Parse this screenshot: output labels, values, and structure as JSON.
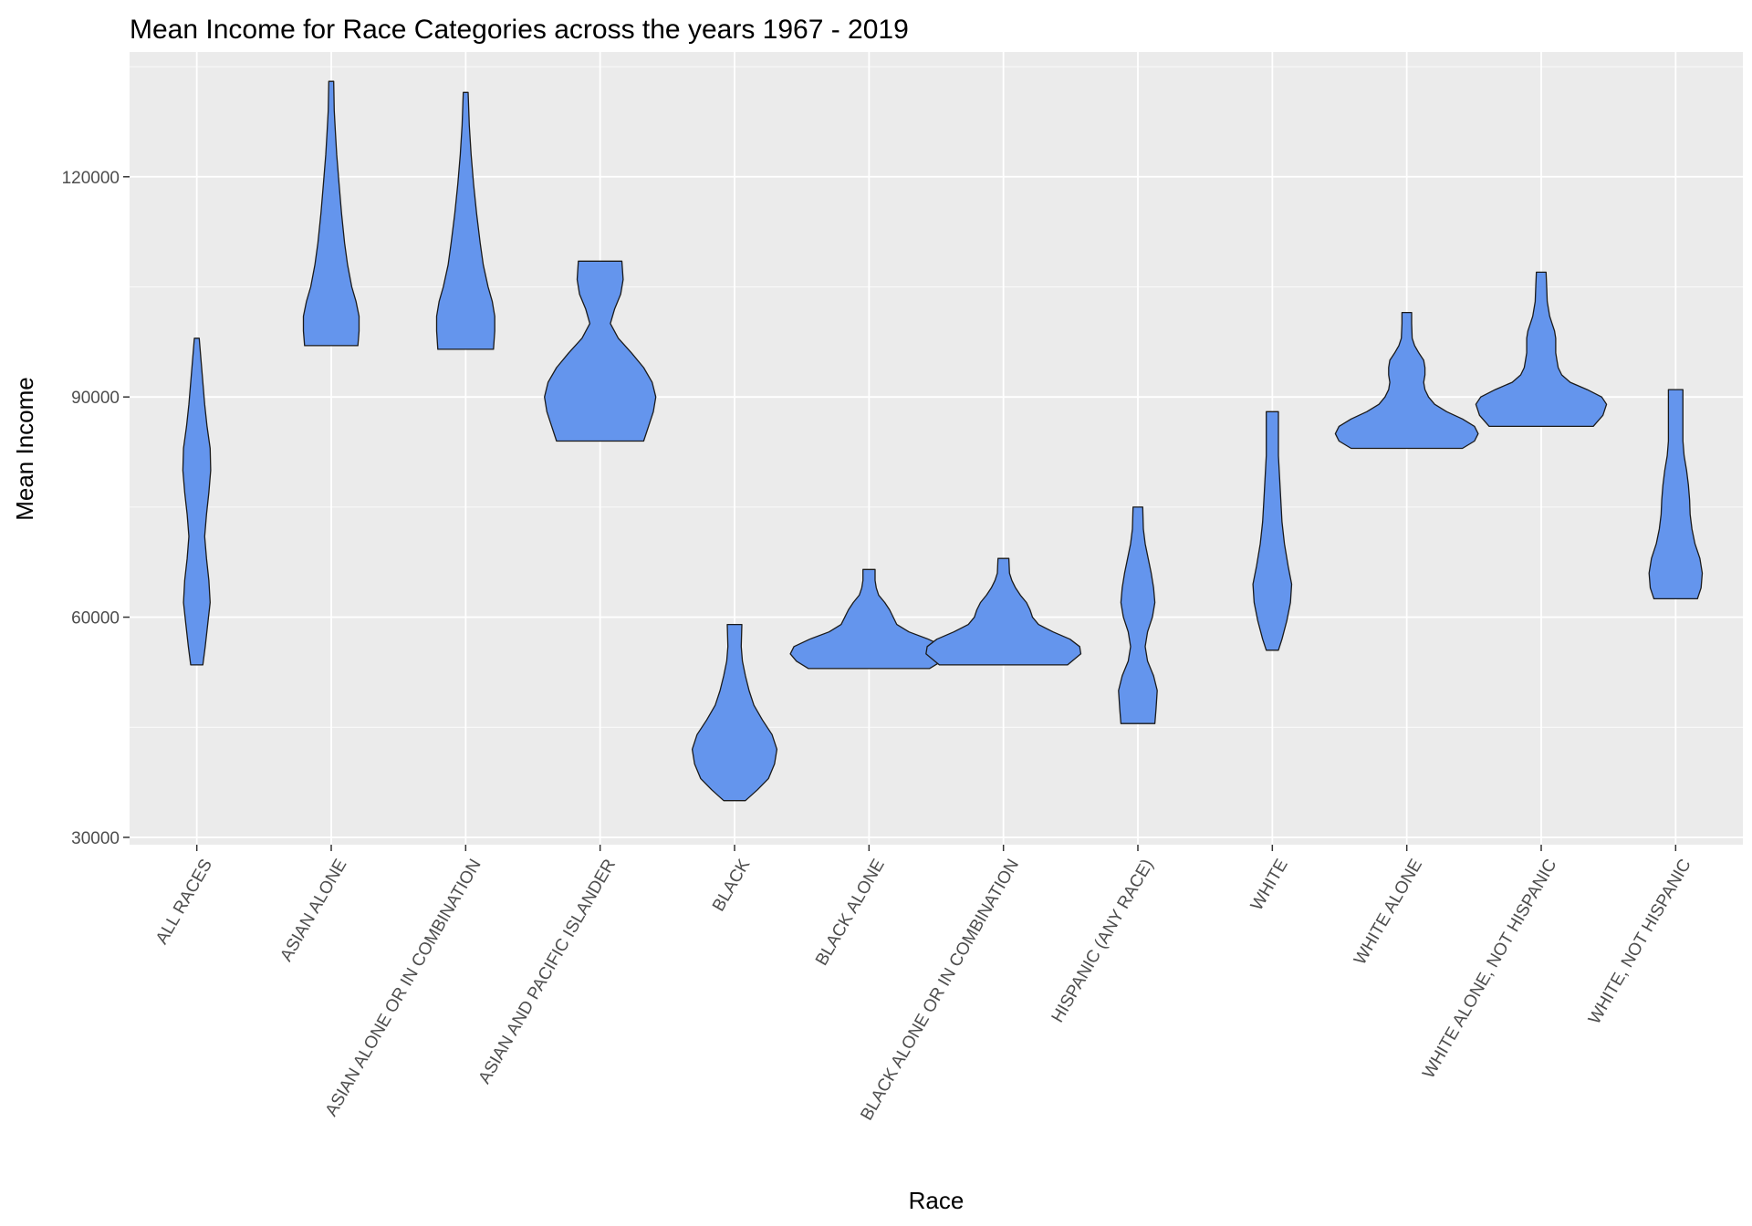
{
  "chart_data": {
    "type": "violin",
    "title": "Mean Income for Race Categories across the years 1967 - 2019",
    "xlabel": "Race",
    "ylabel": "Mean Income",
    "ylim": [
      29000,
      137000
    ],
    "yticks": [
      30000,
      60000,
      90000,
      120000
    ],
    "ytick_labels": [
      "30000",
      "60000",
      "90000",
      "120000"
    ],
    "grid": true,
    "legend": "none",
    "colors": {
      "fill": "#6495ED",
      "stroke": "#1a1a1a",
      "panel": "#EBEBEB",
      "grid": "#FFFFFF"
    },
    "categories": [
      "ALL RACES",
      "ASIAN ALONE",
      "ASIAN ALONE OR IN COMBINATION",
      "ASIAN AND PACIFIC ISLANDER",
      "BLACK",
      "BLACK ALONE",
      "BLACK ALONE OR IN COMBINATION",
      "HISPANIC (ANY RACE)",
      "WHITE",
      "WHITE ALONE",
      "WHITE ALONE, NOT HISPANIC",
      "WHITE, NOT HISPANIC"
    ],
    "violins": [
      {
        "category": "ALL RACES",
        "min": 53500,
        "max": 98000,
        "profile": [
          [
            53500,
            0.1
          ],
          [
            56000,
            0.14
          ],
          [
            59000,
            0.18
          ],
          [
            62000,
            0.22
          ],
          [
            65000,
            0.2
          ],
          [
            68000,
            0.16
          ],
          [
            71000,
            0.13
          ],
          [
            74000,
            0.16
          ],
          [
            77000,
            0.2
          ],
          [
            80000,
            0.23
          ],
          [
            83000,
            0.22
          ],
          [
            86000,
            0.17
          ],
          [
            89000,
            0.13
          ],
          [
            92000,
            0.1
          ],
          [
            95000,
            0.07
          ],
          [
            98000,
            0.04
          ]
        ]
      },
      {
        "category": "ASIAN ALONE",
        "min": 97000,
        "max": 133000,
        "profile": [
          [
            97000,
            0.44
          ],
          [
            99000,
            0.46
          ],
          [
            101000,
            0.46
          ],
          [
            103000,
            0.41
          ],
          [
            105000,
            0.34
          ],
          [
            108000,
            0.27
          ],
          [
            111000,
            0.22
          ],
          [
            115000,
            0.17
          ],
          [
            119000,
            0.13
          ],
          [
            123000,
            0.09
          ],
          [
            126000,
            0.07
          ],
          [
            129000,
            0.05
          ],
          [
            133000,
            0.04
          ]
        ]
      },
      {
        "category": "ASIAN ALONE OR IN COMBINATION",
        "min": 96500,
        "max": 131500,
        "profile": [
          [
            96500,
            0.46
          ],
          [
            99000,
            0.48
          ],
          [
            101000,
            0.48
          ],
          [
            103000,
            0.44
          ],
          [
            105000,
            0.37
          ],
          [
            108000,
            0.29
          ],
          [
            111000,
            0.24
          ],
          [
            115000,
            0.18
          ],
          [
            119000,
            0.13
          ],
          [
            123000,
            0.09
          ],
          [
            127000,
            0.06
          ],
          [
            131500,
            0.04
          ]
        ]
      },
      {
        "category": "ASIAN AND PACIFIC ISLANDER",
        "min": 84000,
        "max": 108500,
        "profile": [
          [
            84000,
            0.72
          ],
          [
            86000,
            0.8
          ],
          [
            88000,
            0.88
          ],
          [
            90000,
            0.92
          ],
          [
            92000,
            0.86
          ],
          [
            94000,
            0.72
          ],
          [
            96000,
            0.52
          ],
          [
            98000,
            0.3
          ],
          [
            100000,
            0.17
          ],
          [
            102000,
            0.24
          ],
          [
            104000,
            0.34
          ],
          [
            106000,
            0.38
          ],
          [
            108500,
            0.36
          ]
        ]
      },
      {
        "category": "BLACK",
        "min": 35000,
        "max": 59000,
        "profile": [
          [
            35000,
            0.18
          ],
          [
            36500,
            0.38
          ],
          [
            38000,
            0.56
          ],
          [
            40000,
            0.66
          ],
          [
            42000,
            0.7
          ],
          [
            44000,
            0.62
          ],
          [
            46000,
            0.46
          ],
          [
            48000,
            0.32
          ],
          [
            50000,
            0.24
          ],
          [
            52000,
            0.18
          ],
          [
            54000,
            0.13
          ],
          [
            56000,
            0.11
          ],
          [
            59000,
            0.12
          ]
        ]
      },
      {
        "category": "BLACK ALONE",
        "min": 53000,
        "max": 66500,
        "profile": [
          [
            53000,
            1.0
          ],
          [
            54000,
            1.2
          ],
          [
            55000,
            1.3
          ],
          [
            56000,
            1.24
          ],
          [
            57000,
            0.98
          ],
          [
            58000,
            0.66
          ],
          [
            59000,
            0.46
          ],
          [
            60000,
            0.4
          ],
          [
            61000,
            0.34
          ],
          [
            62000,
            0.26
          ],
          [
            63000,
            0.16
          ],
          [
            64000,
            0.12
          ],
          [
            65000,
            0.1
          ],
          [
            66500,
            0.1
          ]
        ]
      },
      {
        "category": "BLACK ALONE OR IN COMBINATION",
        "min": 53500,
        "max": 68000,
        "profile": [
          [
            53500,
            1.06
          ],
          [
            55000,
            1.28
          ],
          [
            56000,
            1.26
          ],
          [
            57000,
            1.1
          ],
          [
            58000,
            0.82
          ],
          [
            59000,
            0.58
          ],
          [
            60000,
            0.48
          ],
          [
            61000,
            0.44
          ],
          [
            62000,
            0.38
          ],
          [
            63000,
            0.28
          ],
          [
            64000,
            0.2
          ],
          [
            65000,
            0.14
          ],
          [
            66000,
            0.1
          ],
          [
            68000,
            0.09
          ]
        ]
      },
      {
        "category": "HISPANIC (ANY RACE)",
        "min": 45500,
        "max": 75000,
        "profile": [
          [
            45500,
            0.28
          ],
          [
            47500,
            0.3
          ],
          [
            50000,
            0.32
          ],
          [
            52000,
            0.26
          ],
          [
            54000,
            0.16
          ],
          [
            56000,
            0.12
          ],
          [
            58000,
            0.16
          ],
          [
            60000,
            0.24
          ],
          [
            62000,
            0.28
          ],
          [
            64000,
            0.26
          ],
          [
            66000,
            0.22
          ],
          [
            68000,
            0.17
          ],
          [
            70000,
            0.12
          ],
          [
            72000,
            0.09
          ],
          [
            75000,
            0.08
          ]
        ]
      },
      {
        "category": "WHITE",
        "min": 55500,
        "max": 88000,
        "profile": [
          [
            55500,
            0.1
          ],
          [
            57000,
            0.16
          ],
          [
            59500,
            0.24
          ],
          [
            62000,
            0.3
          ],
          [
            64500,
            0.32
          ],
          [
            67000,
            0.26
          ],
          [
            70000,
            0.2
          ],
          [
            73000,
            0.16
          ],
          [
            76000,
            0.14
          ],
          [
            79000,
            0.12
          ],
          [
            82000,
            0.1
          ],
          [
            85000,
            0.1
          ],
          [
            88000,
            0.1
          ]
        ]
      },
      {
        "category": "WHITE ALONE",
        "min": 83000,
        "max": 101500,
        "profile": [
          [
            83000,
            0.92
          ],
          [
            84000,
            1.12
          ],
          [
            85000,
            1.18
          ],
          [
            86000,
            1.12
          ],
          [
            87000,
            0.92
          ],
          [
            88000,
            0.66
          ],
          [
            89000,
            0.46
          ],
          [
            90000,
            0.36
          ],
          [
            91000,
            0.3
          ],
          [
            92000,
            0.28
          ],
          [
            93000,
            0.3
          ],
          [
            94000,
            0.3
          ],
          [
            95000,
            0.28
          ],
          [
            96000,
            0.2
          ],
          [
            97000,
            0.13
          ],
          [
            98000,
            0.09
          ],
          [
            100000,
            0.08
          ],
          [
            101500,
            0.08
          ]
        ]
      },
      {
        "category": "WHITE ALONE, NOT HISPANIC",
        "min": 86000,
        "max": 107000,
        "profile": [
          [
            86000,
            0.86
          ],
          [
            87500,
            1.02
          ],
          [
            89000,
            1.08
          ],
          [
            90000,
            1.0
          ],
          [
            91000,
            0.76
          ],
          [
            92000,
            0.48
          ],
          [
            93000,
            0.34
          ],
          [
            94000,
            0.28
          ],
          [
            95000,
            0.26
          ],
          [
            96000,
            0.24
          ],
          [
            97000,
            0.24
          ],
          [
            98000,
            0.24
          ],
          [
            99000,
            0.22
          ],
          [
            100000,
            0.18
          ],
          [
            101000,
            0.14
          ],
          [
            103000,
            0.1
          ],
          [
            105000,
            0.09
          ],
          [
            107000,
            0.08
          ]
        ]
      },
      {
        "category": "WHITE, NOT HISPANIC",
        "min": 62500,
        "max": 91000,
        "profile": [
          [
            62500,
            0.36
          ],
          [
            64000,
            0.42
          ],
          [
            66000,
            0.44
          ],
          [
            68000,
            0.4
          ],
          [
            70000,
            0.32
          ],
          [
            72000,
            0.27
          ],
          [
            74000,
            0.24
          ],
          [
            76000,
            0.23
          ],
          [
            78000,
            0.21
          ],
          [
            80000,
            0.18
          ],
          [
            82000,
            0.14
          ],
          [
            84000,
            0.12
          ],
          [
            86000,
            0.12
          ],
          [
            88000,
            0.12
          ],
          [
            91000,
            0.12
          ]
        ]
      }
    ]
  }
}
